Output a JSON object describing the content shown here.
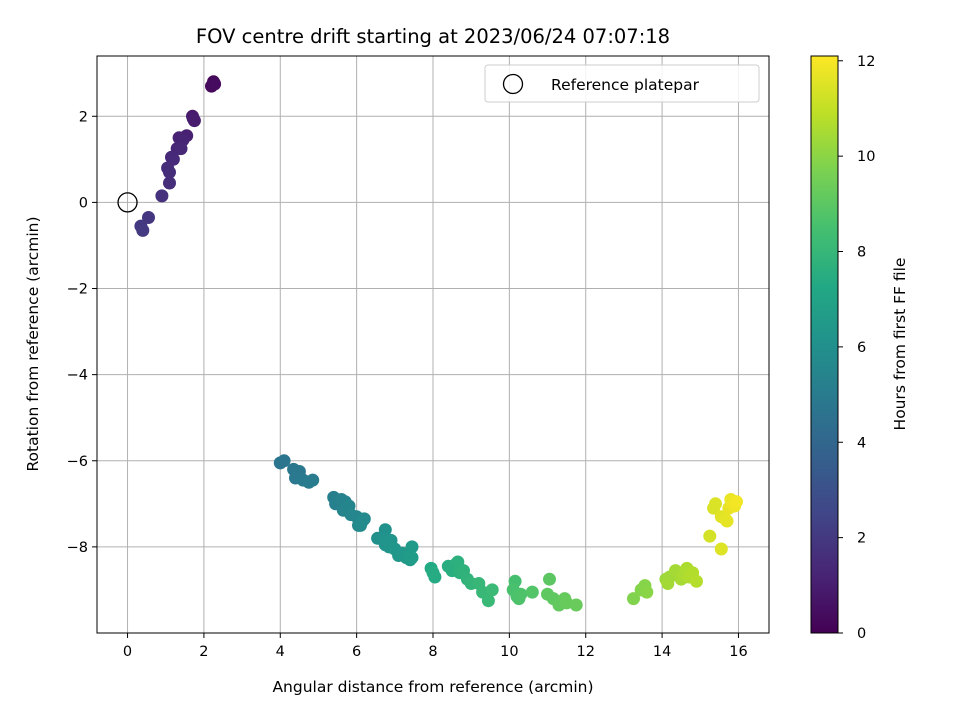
{
  "chart_data": {
    "type": "scatter",
    "title": "FOV centre drift starting at 2023/06/24 07:07:18",
    "xlabel": "Angular distance from reference (arcmin)",
    "ylabel": "Rotation from reference (arcmin)",
    "xlim": [
      -0.8,
      16.8
    ],
    "ylim": [
      -10.0,
      3.4
    ],
    "xticks": [
      0,
      2,
      4,
      6,
      8,
      10,
      12,
      14,
      16
    ],
    "xtick_labels": [
      "0",
      "2",
      "4",
      "6",
      "8",
      "10",
      "12",
      "14",
      "16"
    ],
    "yticks": [
      2,
      0,
      -2,
      -4,
      -6,
      -8
    ],
    "ytick_labels": [
      "2",
      "0",
      "−2",
      "−4",
      "−6",
      "−8"
    ],
    "grid": true,
    "legend": {
      "position": "top-right",
      "entries": [
        "Reference platepar"
      ]
    },
    "reference_marker": {
      "label": "Reference platepar",
      "x": 0,
      "y": 0
    },
    "colorbar": {
      "label": "Hours from first FF file",
      "range": [
        0,
        12.1
      ],
      "ticks": [
        0,
        2,
        4,
        6,
        8,
        10,
        12
      ],
      "tick_labels": [
        "0",
        "2",
        "4",
        "6",
        "8",
        "10",
        "12"
      ],
      "colormap": "viridis"
    },
    "points_fields": [
      "x_arcmin",
      "y_arcmin",
      "hours"
    ],
    "points": [
      [
        2.25,
        2.8,
        0.2
      ],
      [
        2.2,
        2.7,
        0.3
      ],
      [
        2.28,
        2.75,
        0.35
      ],
      [
        1.7,
        2.0,
        0.8
      ],
      [
        1.75,
        1.9,
        0.9
      ],
      [
        1.72,
        1.95,
        0.95
      ],
      [
        1.55,
        1.55,
        1.1
      ],
      [
        1.35,
        1.5,
        1.15
      ],
      [
        1.45,
        1.45,
        1.2
      ],
      [
        1.3,
        1.25,
        1.3
      ],
      [
        1.4,
        1.25,
        1.35
      ],
      [
        1.15,
        1.05,
        1.4
      ],
      [
        1.2,
        1.0,
        1.45
      ],
      [
        1.05,
        0.8,
        1.5
      ],
      [
        1.1,
        0.7,
        1.55
      ],
      [
        1.1,
        0.45,
        1.6
      ],
      [
        0.9,
        0.15,
        1.7
      ],
      [
        0.55,
        -0.35,
        1.9
      ],
      [
        0.35,
        -0.55,
        2.0
      ],
      [
        0.4,
        -0.65,
        2.05
      ],
      [
        4.0,
        -6.05,
        4.7
      ],
      [
        4.1,
        -6.0,
        4.75
      ],
      [
        4.35,
        -6.2,
        4.8
      ],
      [
        4.5,
        -6.25,
        4.85
      ],
      [
        4.4,
        -6.4,
        4.9
      ],
      [
        4.6,
        -6.45,
        4.95
      ],
      [
        4.75,
        -6.5,
        5.0
      ],
      [
        4.85,
        -6.45,
        5.05
      ],
      [
        5.4,
        -6.85,
        5.2
      ],
      [
        5.45,
        -7.0,
        5.25
      ],
      [
        5.6,
        -6.9,
        5.3
      ],
      [
        5.7,
        -6.95,
        5.35
      ],
      [
        5.65,
        -7.15,
        5.4
      ],
      [
        5.8,
        -7.05,
        5.45
      ],
      [
        5.85,
        -7.25,
        5.5
      ],
      [
        6.0,
        -7.3,
        5.55
      ],
      [
        6.05,
        -7.5,
        5.6
      ],
      [
        6.15,
        -7.4,
        5.65
      ],
      [
        6.2,
        -7.35,
        5.7
      ],
      [
        6.1,
        -7.5,
        5.75
      ],
      [
        6.55,
        -7.8,
        6.0
      ],
      [
        6.75,
        -7.6,
        6.05
      ],
      [
        6.7,
        -7.8,
        6.1
      ],
      [
        6.85,
        -8.0,
        6.15
      ],
      [
        6.75,
        -7.95,
        6.2
      ],
      [
        6.9,
        -7.85,
        6.25
      ],
      [
        7.0,
        -8.05,
        6.3
      ],
      [
        7.1,
        -8.2,
        6.35
      ],
      [
        7.2,
        -8.15,
        6.4
      ],
      [
        7.3,
        -8.25,
        6.45
      ],
      [
        7.35,
        -8.15,
        6.5
      ],
      [
        7.45,
        -8.0,
        6.55
      ],
      [
        7.4,
        -8.3,
        6.6
      ],
      [
        7.45,
        -8.25,
        6.65
      ],
      [
        7.95,
        -8.5,
        7.3
      ],
      [
        8.05,
        -8.7,
        7.35
      ],
      [
        8.0,
        -8.6,
        7.4
      ],
      [
        8.4,
        -8.45,
        7.5
      ],
      [
        8.5,
        -8.55,
        7.55
      ],
      [
        8.6,
        -8.4,
        7.6
      ],
      [
        8.65,
        -8.35,
        7.65
      ],
      [
        8.7,
        -8.6,
        7.7
      ],
      [
        8.8,
        -8.55,
        7.75
      ],
      [
        8.9,
        -8.75,
        7.8
      ],
      [
        9.0,
        -8.85,
        7.9
      ],
      [
        9.2,
        -8.85,
        8.0
      ],
      [
        9.3,
        -9.05,
        8.05
      ],
      [
        9.45,
        -9.25,
        8.1
      ],
      [
        9.55,
        -9.0,
        8.15
      ],
      [
        10.15,
        -8.8,
        8.5
      ],
      [
        10.1,
        -9.0,
        8.55
      ],
      [
        10.2,
        -9.15,
        8.6
      ],
      [
        10.3,
        -9.1,
        8.65
      ],
      [
        10.25,
        -9.2,
        8.7
      ],
      [
        10.6,
        -9.05,
        8.8
      ],
      [
        11.05,
        -8.75,
        9.0
      ],
      [
        11.0,
        -9.1,
        9.05
      ],
      [
        11.15,
        -9.2,
        9.1
      ],
      [
        11.3,
        -9.35,
        9.15
      ],
      [
        11.45,
        -9.2,
        9.2
      ],
      [
        11.5,
        -9.3,
        9.25
      ],
      [
        11.75,
        -9.35,
        9.3
      ],
      [
        13.25,
        -9.2,
        9.8
      ],
      [
        13.45,
        -9.0,
        9.85
      ],
      [
        13.55,
        -8.9,
        9.9
      ],
      [
        13.6,
        -9.05,
        9.95
      ],
      [
        14.1,
        -8.75,
        10.3
      ],
      [
        14.2,
        -8.7,
        10.35
      ],
      [
        14.15,
        -8.85,
        10.4
      ],
      [
        14.35,
        -8.55,
        10.45
      ],
      [
        14.5,
        -8.75,
        10.5
      ],
      [
        14.55,
        -8.65,
        10.55
      ],
      [
        14.65,
        -8.5,
        10.6
      ],
      [
        14.7,
        -8.7,
        10.65
      ],
      [
        14.8,
        -8.6,
        10.7
      ],
      [
        14.9,
        -8.8,
        10.75
      ],
      [
        15.25,
        -7.75,
        11.3
      ],
      [
        15.35,
        -7.1,
        11.4
      ],
      [
        15.4,
        -7.0,
        11.45
      ],
      [
        15.55,
        -8.05,
        11.5
      ],
      [
        15.55,
        -7.3,
        11.55
      ],
      [
        15.65,
        -7.35,
        11.6
      ],
      [
        15.7,
        -7.4,
        11.65
      ],
      [
        15.75,
        -7.1,
        11.7
      ],
      [
        15.8,
        -6.9,
        11.75
      ],
      [
        15.85,
        -7.0,
        11.8
      ],
      [
        15.9,
        -7.05,
        11.85
      ],
      [
        15.95,
        -6.95,
        11.9
      ]
    ]
  }
}
